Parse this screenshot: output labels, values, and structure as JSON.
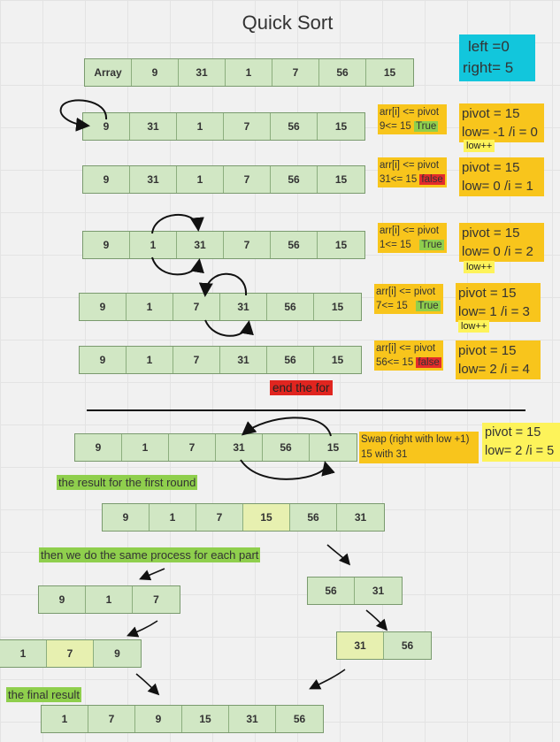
{
  "title": "Quick Sort",
  "bounds": {
    "left_label": "left =0",
    "right_label": "right= 5"
  },
  "header_row": {
    "label": "Array",
    "values": [
      "9",
      "31",
      "1",
      "7",
      "56",
      "15"
    ]
  },
  "steps": [
    {
      "values": [
        "9",
        "31",
        "1",
        "7",
        "56",
        "15"
      ],
      "cond": "arr[i] <= pivot",
      "test": "9<= 15",
      "result": "True",
      "pivot": "pivot = 15",
      "state": "low= -1  /i = 0",
      "note": "low++"
    },
    {
      "values": [
        "9",
        "31",
        "1",
        "7",
        "56",
        "15"
      ],
      "cond": "arr[i] <= pivot",
      "test": "31<= 15",
      "result": "false",
      "pivot": "pivot = 15",
      "state": "low= 0  /i = 1",
      "note": ""
    },
    {
      "values": [
        "9",
        "1",
        "31",
        "7",
        "56",
        "15"
      ],
      "cond": "arr[i] <= pivot",
      "test": "1<= 15",
      "result": "True",
      "pivot": "pivot = 15",
      "state": "low= 0  /i = 2",
      "note": "low++"
    },
    {
      "values": [
        "9",
        "1",
        "7",
        "31",
        "56",
        "15"
      ],
      "cond": "arr[i] <= pivot",
      "test": "7<= 15",
      "result": "True",
      "pivot": "pivot = 15",
      "state": "low= 1  /i = 3",
      "note": "low++"
    },
    {
      "values": [
        "9",
        "1",
        "7",
        "31",
        "56",
        "15"
      ],
      "cond": "arr[i] <= pivot",
      "test": "56<= 15",
      "result": "false",
      "pivot": "pivot = 15",
      "state": "low= 2  /i = 4",
      "note": ""
    }
  ],
  "end_for": "end the for",
  "swap_step": {
    "values": [
      "9",
      "1",
      "7",
      "31",
      "56",
      "15"
    ],
    "swap_line1": "Swap (right with low +1)",
    "swap_line2": "15 with 31",
    "pivot": "pivot = 15",
    "state": "low= 2  /i = 5"
  },
  "first_round": {
    "label": "the result for the first round",
    "values": [
      "9",
      "1",
      "7",
      "15",
      "56",
      "31"
    ]
  },
  "same_process": {
    "label": "then we do the same process for each part"
  },
  "left_part": {
    "values": [
      "9",
      "1",
      "7"
    ],
    "sorted": [
      "1",
      "7",
      "9"
    ]
  },
  "right_part": {
    "values": [
      "56",
      "31"
    ],
    "sorted": [
      "31",
      "56"
    ]
  },
  "final": {
    "label": "the final result",
    "values": [
      "1",
      "7",
      "9",
      "15",
      "31",
      "56"
    ]
  },
  "colors": {
    "cell_fill": "#d1e7c4",
    "condition_fill": "#f8c51c",
    "true_tag": "#8fcf4d",
    "false_tag": "#e32b2b",
    "bounds_fill": "#12c6dc",
    "pivot_highlight": "#e7f0b0"
  }
}
